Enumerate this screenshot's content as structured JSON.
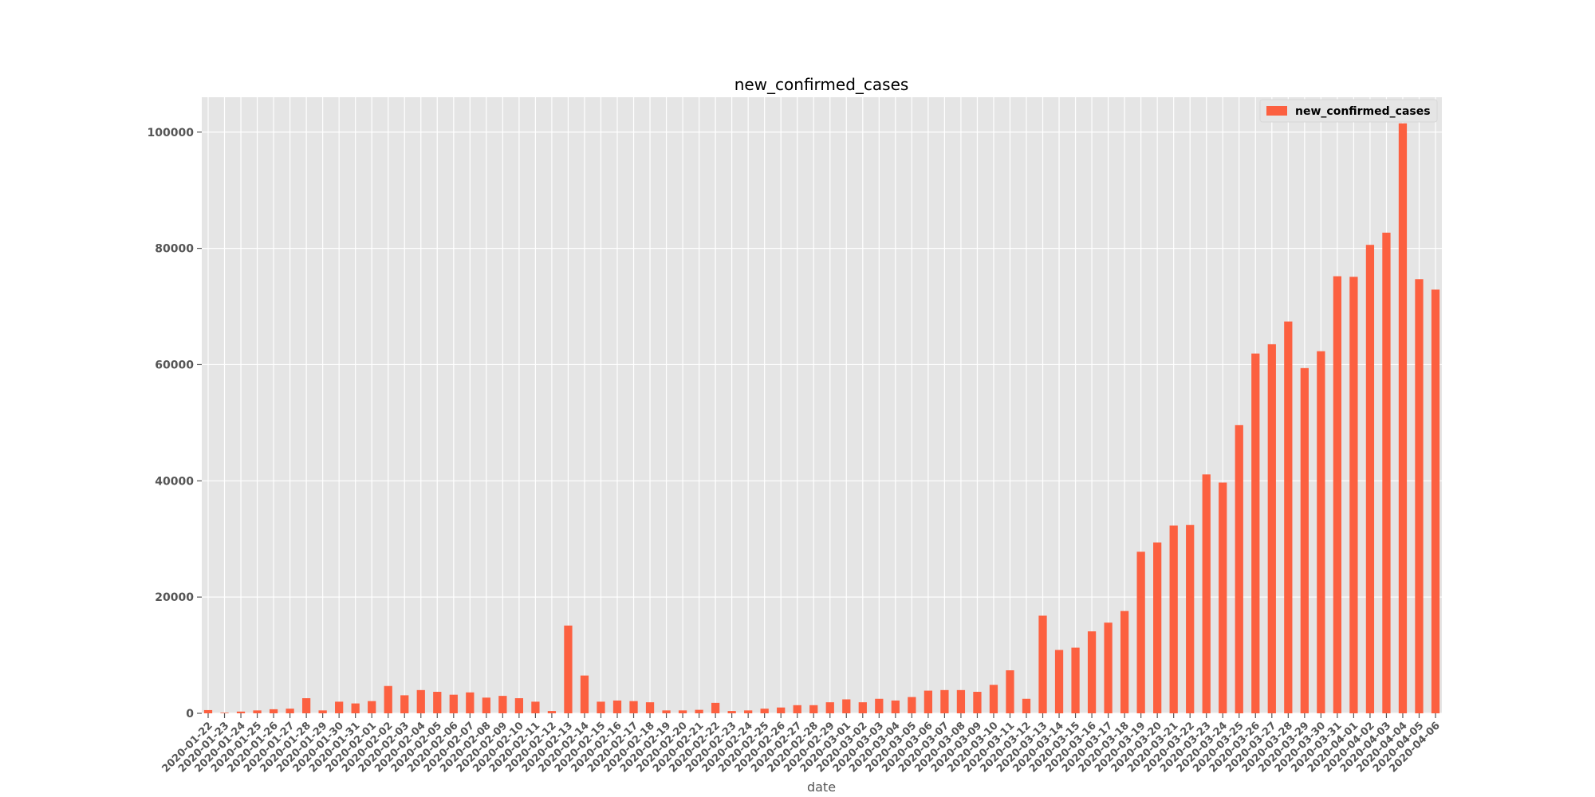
{
  "chart_data": {
    "type": "bar",
    "title": "new_confirmed_cases",
    "xlabel": "date",
    "ylabel": "",
    "ylim": [
      0,
      106000
    ],
    "yticks": [
      0,
      20000,
      40000,
      60000,
      80000,
      100000
    ],
    "grid": true,
    "legend_position": "top-right",
    "colors": {
      "bar": "#fc6040",
      "plot_background": "#e5e5e5",
      "grid": "#ffffff"
    },
    "categories": [
      "2020-01-22",
      "2020-01-23",
      "2020-01-24",
      "2020-01-25",
      "2020-01-26",
      "2020-01-27",
      "2020-01-28",
      "2020-01-29",
      "2020-01-30",
      "2020-01-31",
      "2020-02-01",
      "2020-02-02",
      "2020-02-03",
      "2020-02-04",
      "2020-02-05",
      "2020-02-06",
      "2020-02-07",
      "2020-02-08",
      "2020-02-09",
      "2020-02-10",
      "2020-02-11",
      "2020-02-12",
      "2020-02-13",
      "2020-02-14",
      "2020-02-15",
      "2020-02-16",
      "2020-02-17",
      "2020-02-18",
      "2020-02-19",
      "2020-02-20",
      "2020-02-21",
      "2020-02-22",
      "2020-02-23",
      "2020-02-24",
      "2020-02-25",
      "2020-02-26",
      "2020-02-27",
      "2020-02-28",
      "2020-02-29",
      "2020-03-01",
      "2020-03-02",
      "2020-03-03",
      "2020-03-04",
      "2020-03-05",
      "2020-03-06",
      "2020-03-07",
      "2020-03-08",
      "2020-03-09",
      "2020-03-10",
      "2020-03-11",
      "2020-03-12",
      "2020-03-13",
      "2020-03-14",
      "2020-03-15",
      "2020-03-16",
      "2020-03-17",
      "2020-03-18",
      "2020-03-19",
      "2020-03-20",
      "2020-03-21",
      "2020-03-22",
      "2020-03-23",
      "2020-03-24",
      "2020-03-25",
      "2020-03-26",
      "2020-03-27",
      "2020-03-28",
      "2020-03-29",
      "2020-03-30",
      "2020-03-31",
      "2020-04-01",
      "2020-04-02",
      "2020-04-03",
      "2020-04-04",
      "2020-04-05",
      "2020-04-06"
    ],
    "series": [
      {
        "name": "new_confirmed_cases",
        "values": [
          555,
          100,
          300,
          500,
          700,
          800,
          2600,
          500,
          2000,
          1700,
          2100,
          4700,
          3100,
          4000,
          3700,
          3200,
          3600,
          2700,
          3000,
          2600,
          2000,
          400,
          15100,
          6500,
          2000,
          2200,
          2100,
          1900,
          500,
          500,
          600,
          1800,
          400,
          500,
          800,
          1000,
          1400,
          1400,
          1900,
          2400,
          1900,
          2500,
          2200,
          2800,
          3900,
          4000,
          4000,
          3700,
          4900,
          7400,
          2500,
          16800,
          10900,
          11300,
          14100,
          15600,
          17600,
          27800,
          29400,
          32300,
          32400,
          41100,
          39700,
          49600,
          61900,
          63500,
          67400,
          59400,
          62300,
          75200,
          75100,
          80600,
          82700,
          101500,
          74700,
          72900
        ]
      }
    ]
  }
}
